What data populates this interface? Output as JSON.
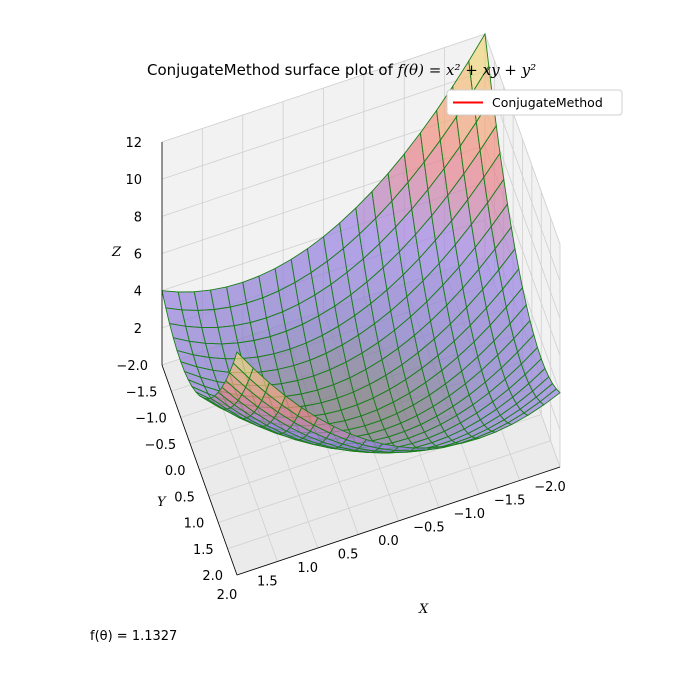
{
  "chart_data": {
    "type": "surface",
    "title_prefix": "ConjugateMethod surface plot of ",
    "title_formula": "f(θ) = x² + xy + y²",
    "function": "x^2 + x*y + y^2",
    "xlabel": "X",
    "ylabel": "Y",
    "zlabel": "Z",
    "xlim": [
      -2.0,
      2.0
    ],
    "ylim": [
      -2.0,
      2.0
    ],
    "zlim": [
      0,
      12
    ],
    "x_ticks": [
      "2.0",
      "1.5",
      "1.0",
      "0.5",
      "0.0",
      "−0.5",
      "−1.0",
      "−1.5",
      "−2.0"
    ],
    "y_ticks": [
      "−2.0",
      "−1.5",
      "−1.0",
      "−0.5",
      "0.0",
      "0.5",
      "1.0",
      "1.5",
      "2.0"
    ],
    "z_ticks": [
      "2",
      "4",
      "6",
      "8",
      "10",
      "12"
    ],
    "grid": true,
    "grid_resolution": 20,
    "colormap": "spectral-pastel",
    "surface_alpha": 0.7,
    "wire_color": "#1a7f1a",
    "legend": {
      "placement": "top-right",
      "entries": [
        {
          "label": "ConjugateMethod",
          "color": "#ff0000"
        }
      ]
    },
    "annotation": "f(θ) = 1.1327"
  }
}
